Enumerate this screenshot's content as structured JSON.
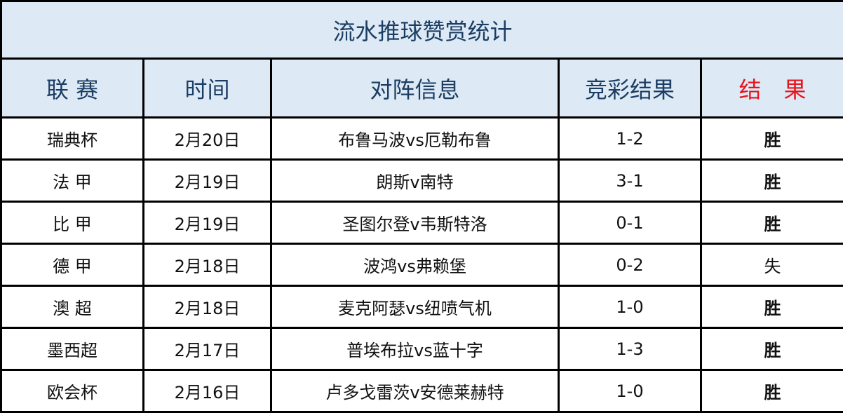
{
  "title": "流水推球赞赏统计",
  "headers": [
    "联 赛",
    "时间",
    "对阵信息",
    "竞彩结果",
    "结　果"
  ],
  "colors": {
    "header_bg": "#ddeaf6",
    "header_text": "#1c3d63",
    "red": "#e8141c"
  },
  "rows": [
    {
      "league": "瑞典杯",
      "date": "2月20日",
      "match": "布鲁马波vs厄勒布鲁",
      "score": "1-2",
      "result": "胜"
    },
    {
      "league": "法 甲",
      "date": "2月19日",
      "match": "朗斯v南特",
      "score": "3-1",
      "result": "胜"
    },
    {
      "league": "比 甲",
      "date": "2月19日",
      "match": "圣图尔登v韦斯特洛",
      "score": "0-1",
      "result": "胜"
    },
    {
      "league": "德 甲",
      "date": "2月18日",
      "match": "波鸿vs弗赖堡",
      "score": "0-2",
      "result": "失"
    },
    {
      "league": "澳 超",
      "date": "2月18日",
      "match": "麦克阿瑟vs纽喷气机",
      "score": "1-0",
      "result": "胜"
    },
    {
      "league": "墨西超",
      "date": "2月17日",
      "match": "普埃布拉vs蓝十字",
      "score": "1-3",
      "result": "胜"
    },
    {
      "league": "欧会杯",
      "date": "2月16日",
      "match": "卢多戈雷茨v安德莱赫特",
      "score": "1-0",
      "result": "胜"
    }
  ]
}
